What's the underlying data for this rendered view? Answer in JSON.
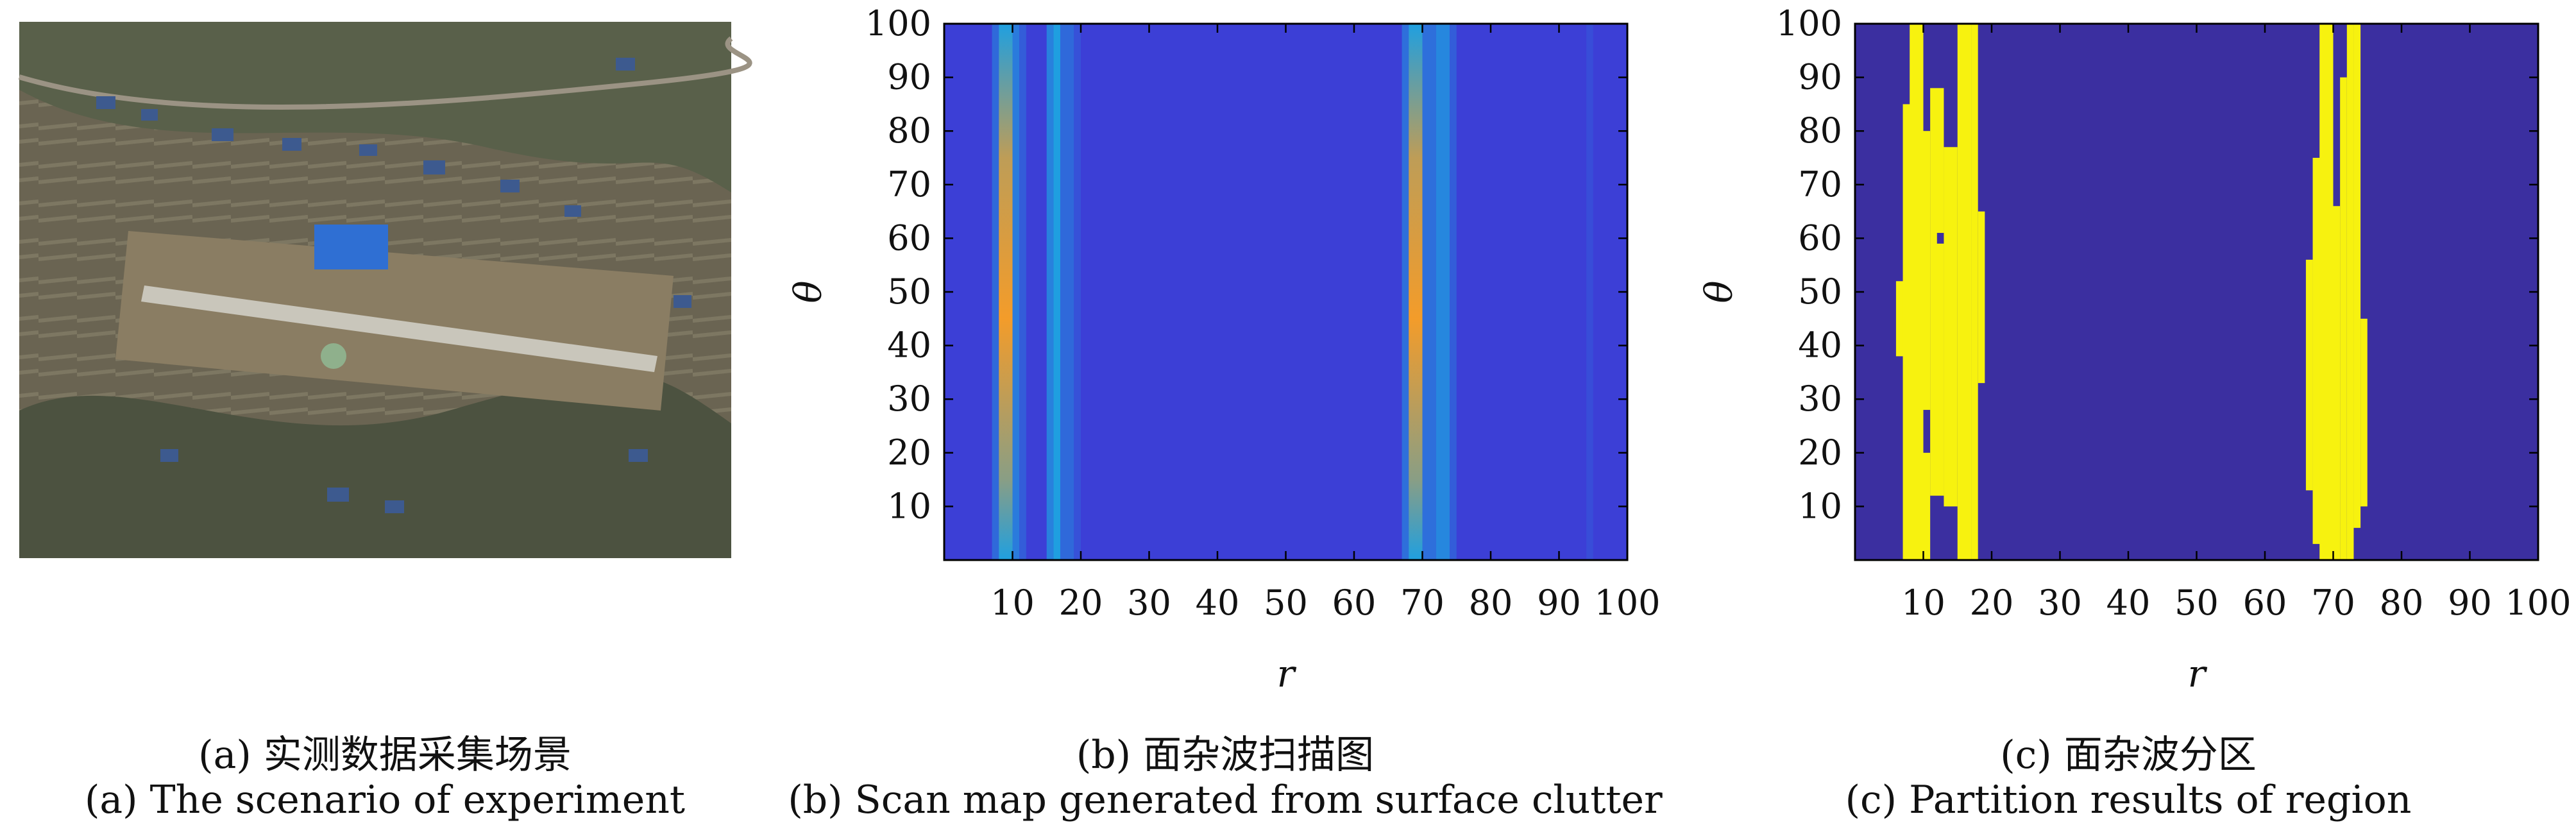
{
  "panels": {
    "a": {
      "caption_zh": "(a) 实测数据采集场景",
      "caption_en": "(a) The scenario of experiment"
    },
    "b": {
      "caption_zh": "(b) 面杂波扫描图",
      "caption_en": "(b) Scan map generated from surface clutter"
    },
    "c": {
      "caption_zh": "(c) 面杂波分区",
      "caption_en": "(c) Partition results of region"
    }
  },
  "colors": {
    "background_b": "#3c3fd6",
    "background_c": "#3b2fa0",
    "partition": "#f7f20f",
    "mid": "#1f9fe0",
    "peak": "#f39c2a"
  },
  "chart_data": [
    {
      "type": "heatmap",
      "title": "",
      "xlabel": "r",
      "ylabel": "θ",
      "xlim": [
        0,
        100
      ],
      "ylim": [
        0,
        100
      ],
      "xticks": [
        10,
        20,
        30,
        40,
        50,
        60,
        70,
        80,
        90,
        100
      ],
      "yticks": [
        10,
        20,
        30,
        40,
        50,
        60,
        70,
        80,
        90,
        100
      ],
      "columns": [
        {
          "r0": 7,
          "r1": 8,
          "intensity": 0.35
        },
        {
          "r0": 8,
          "r1": 10,
          "intensity": 0.95
        },
        {
          "r0": 10,
          "r1": 11,
          "intensity": 0.5
        },
        {
          "r0": 11,
          "r1": 12,
          "intensity": 0.25
        },
        {
          "r0": 15,
          "r1": 16,
          "intensity": 0.55
        },
        {
          "r0": 16,
          "r1": 17,
          "intensity": 0.8
        },
        {
          "r0": 17,
          "r1": 19,
          "intensity": 0.35
        },
        {
          "r0": 19,
          "r1": 20,
          "intensity": 0.15
        },
        {
          "r0": 67,
          "r1": 68,
          "intensity": 0.4
        },
        {
          "r0": 68,
          "r1": 70,
          "intensity": 0.95
        },
        {
          "r0": 70,
          "r1": 72,
          "intensity": 0.4
        },
        {
          "r0": 72,
          "r1": 74,
          "intensity": 0.6
        },
        {
          "r0": 74,
          "r1": 75,
          "intensity": 0.25
        },
        {
          "r0": 94,
          "r1": 95,
          "intensity": 0.12
        }
      ]
    },
    {
      "type": "heatmap",
      "title": "",
      "xlabel": "r",
      "ylabel": "θ",
      "xlim": [
        0,
        100
      ],
      "ylim": [
        0,
        100
      ],
      "xticks": [
        10,
        20,
        30,
        40,
        50,
        60,
        70,
        80,
        90,
        100
      ],
      "yticks": [
        10,
        20,
        30,
        40,
        50,
        60,
        70,
        80,
        90,
        100
      ],
      "regions": [
        {
          "r0": 6,
          "r1": 8,
          "t0": 38,
          "t1": 52
        },
        {
          "r0": 7,
          "r1": 9,
          "t0": 0,
          "t1": 85
        },
        {
          "r0": 8,
          "r1": 10,
          "t0": 0,
          "t1": 100
        },
        {
          "r0": 10,
          "r1": 11,
          "t0": 28,
          "t1": 80
        },
        {
          "r0": 10,
          "r1": 11,
          "t0": 0,
          "t1": 20
        },
        {
          "r0": 11,
          "r1": 13,
          "t0": 12,
          "t1": 88
        },
        {
          "r0": 13,
          "r1": 15,
          "t0": 10,
          "t1": 77
        },
        {
          "r0": 15,
          "r1": 17,
          "t0": 0,
          "t1": 100
        },
        {
          "r0": 17,
          "r1": 18,
          "t0": 0,
          "t1": 100
        },
        {
          "r0": 18,
          "r1": 19,
          "t0": 33,
          "t1": 65
        },
        {
          "r0": 66,
          "r1": 67,
          "t0": 13,
          "t1": 56
        },
        {
          "r0": 67,
          "r1": 69,
          "t0": 3,
          "t1": 75
        },
        {
          "r0": 68,
          "r1": 70,
          "t0": 0,
          "t1": 100
        },
        {
          "r0": 70,
          "r1": 71,
          "t0": 0,
          "t1": 66
        },
        {
          "r0": 71,
          "r1": 72,
          "t0": 0,
          "t1": 90
        },
        {
          "r0": 72,
          "r1": 73,
          "t0": 0,
          "t1": 100
        },
        {
          "r0": 73,
          "r1": 74,
          "t0": 6,
          "t1": 100
        },
        {
          "r0": 74,
          "r1": 75,
          "t0": 10,
          "t1": 45
        }
      ],
      "holes": [
        {
          "r0": 12,
          "r1": 13,
          "t0": 59,
          "t1": 61
        }
      ]
    }
  ]
}
